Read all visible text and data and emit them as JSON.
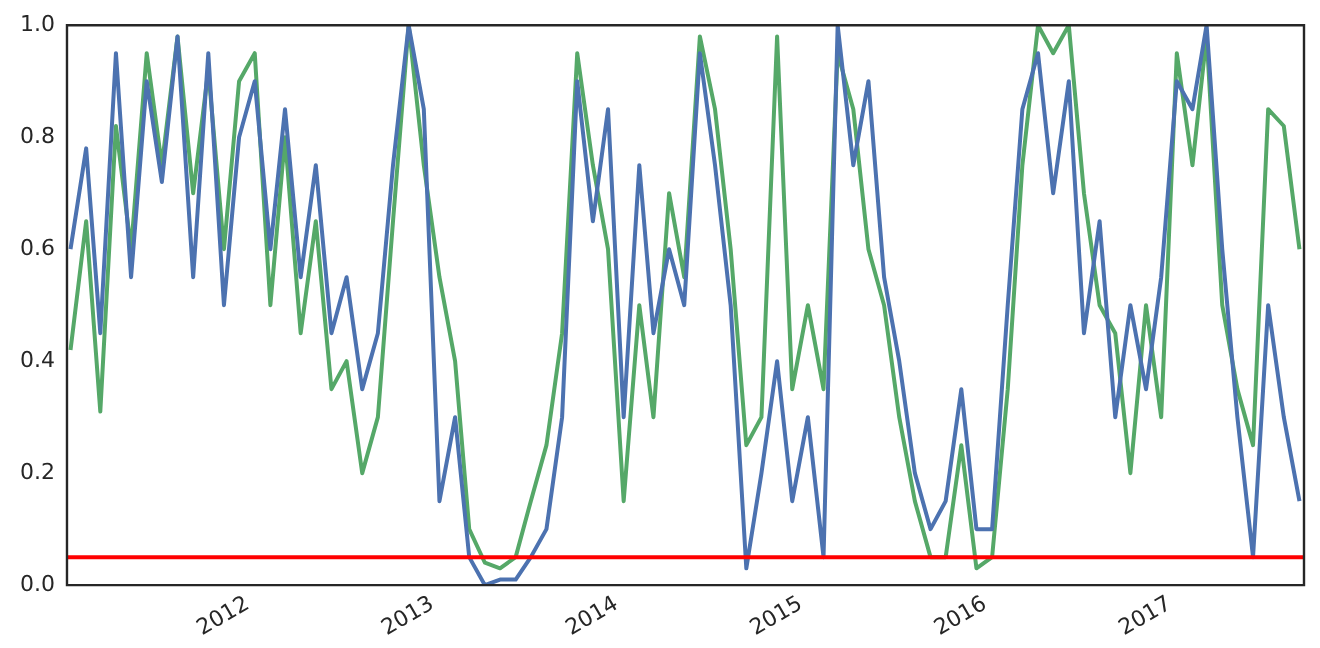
{
  "chart_data": {
    "type": "line",
    "marker": "none",
    "line_style": "solid",
    "grid": false,
    "legend": false,
    "x": [
      "2011-01-15",
      "2011-02-15",
      "2011-03-15",
      "2011-04-15",
      "2011-05-15",
      "2011-06-15",
      "2011-07-15",
      "2011-08-15",
      "2011-09-15",
      "2011-10-15",
      "2011-11-15",
      "2011-12-15",
      "2012-01-15",
      "2012-02-15",
      "2012-03-15",
      "2012-04-15",
      "2012-05-15",
      "2012-06-15",
      "2012-07-15",
      "2012-08-15",
      "2012-09-15",
      "2012-10-15",
      "2012-11-15",
      "2012-12-15",
      "2013-01-15",
      "2013-02-15",
      "2013-03-15",
      "2013-04-15",
      "2013-05-15",
      "2013-06-15",
      "2013-07-15",
      "2013-08-15",
      "2013-09-15",
      "2013-10-15",
      "2013-11-15",
      "2013-12-15",
      "2014-01-15",
      "2014-02-15",
      "2014-03-15",
      "2014-04-15",
      "2014-05-15",
      "2014-06-15",
      "2014-07-15",
      "2014-08-15",
      "2014-09-15",
      "2014-10-15",
      "2014-11-15",
      "2014-12-15",
      "2015-01-15",
      "2015-02-15",
      "2015-03-15",
      "2015-04-15",
      "2015-05-15",
      "2015-06-15",
      "2015-07-15",
      "2015-08-15",
      "2015-09-15",
      "2015-10-15",
      "2015-11-15",
      "2015-12-15",
      "2016-01-15",
      "2016-02-15",
      "2016-03-15",
      "2016-04-15",
      "2016-05-15",
      "2016-06-15",
      "2016-07-15",
      "2016-08-15",
      "2016-09-15",
      "2016-10-15",
      "2016-11-15",
      "2016-12-15",
      "2017-01-15",
      "2017-02-15",
      "2017-03-15",
      "2017-04-15",
      "2017-05-15",
      "2017-06-15",
      "2017-07-15",
      "2017-08-15",
      "2017-09-15"
    ],
    "series": [
      {
        "color": "#4c72b0",
        "values": [
          0.6,
          0.78,
          0.45,
          0.95,
          0.55,
          0.9,
          0.72,
          0.98,
          0.55,
          0.95,
          0.5,
          0.8,
          0.9,
          0.6,
          0.85,
          0.55,
          0.75,
          0.45,
          0.55,
          0.35,
          0.45,
          0.75,
          1.0,
          0.85,
          0.15,
          0.3,
          0.05,
          0.0,
          0.01,
          0.01,
          0.05,
          0.1,
          0.3,
          0.9,
          0.65,
          0.85,
          0.3,
          0.75,
          0.45,
          0.6,
          0.5,
          0.95,
          0.75,
          0.5,
          0.03,
          0.2,
          0.4,
          0.15,
          0.3,
          0.05,
          1.0,
          0.75,
          0.9,
          0.55,
          0.4,
          0.2,
          0.1,
          0.15,
          0.35,
          0.1,
          0.1,
          0.5,
          0.85,
          0.95,
          0.7,
          0.9,
          0.45,
          0.65,
          0.3,
          0.5,
          0.35,
          0.55,
          0.9,
          0.85,
          1.0,
          0.6,
          0.3,
          0.05,
          0.5,
          0.3,
          0.15
        ]
      },
      {
        "color": "#55a868",
        "values": [
          0.42,
          0.65,
          0.31,
          0.82,
          0.6,
          0.95,
          0.75,
          0.98,
          0.7,
          0.92,
          0.6,
          0.9,
          0.95,
          0.5,
          0.8,
          0.45,
          0.65,
          0.35,
          0.4,
          0.2,
          0.3,
          0.65,
          1.0,
          0.75,
          0.55,
          0.4,
          0.1,
          0.04,
          0.03,
          0.05,
          0.15,
          0.25,
          0.45,
          0.95,
          0.75,
          0.6,
          0.15,
          0.5,
          0.3,
          0.7,
          0.55,
          0.98,
          0.85,
          0.6,
          0.25,
          0.3,
          0.98,
          0.35,
          0.5,
          0.35,
          0.95,
          0.85,
          0.6,
          0.5,
          0.3,
          0.15,
          0.05,
          0.05,
          0.25,
          0.03,
          0.05,
          0.35,
          0.75,
          1.0,
          0.95,
          1.0,
          0.7,
          0.5,
          0.45,
          0.2,
          0.5,
          0.3,
          0.95,
          0.75,
          0.98,
          0.5,
          0.35,
          0.25,
          0.85,
          0.82,
          0.6
        ]
      }
    ],
    "xlim": [
      "2011-01-08",
      "2017-09-24"
    ],
    "xticks": [
      {
        "value": "2012-01-01",
        "label": "2012"
      },
      {
        "value": "2013-01-01",
        "label": "2013"
      },
      {
        "value": "2014-01-01",
        "label": "2014"
      },
      {
        "value": "2015-01-01",
        "label": "2015"
      },
      {
        "value": "2016-01-01",
        "label": "2016"
      },
      {
        "value": "2017-01-01",
        "label": "2017"
      }
    ],
    "ylim": [
      0,
      1
    ],
    "yticks": [
      {
        "value": 0,
        "label": "0.0"
      },
      {
        "value": 0.2,
        "label": "0.2"
      },
      {
        "value": 0.4,
        "label": "0.4"
      },
      {
        "value": 0.6,
        "label": "0.6"
      },
      {
        "value": 0.8,
        "label": "0.8"
      },
      {
        "value": 1,
        "label": "1.0"
      }
    ],
    "ref_lines": [
      {
        "axis": "y",
        "value": 0.05,
        "color": "#ff0000",
        "line_style": "solid"
      }
    ]
  }
}
